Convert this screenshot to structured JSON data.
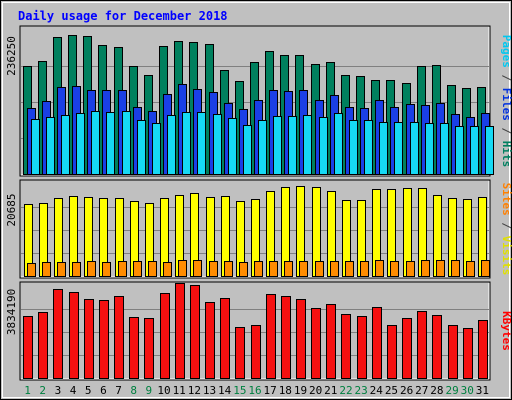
{
  "chart_data": {
    "type": "bar",
    "title": "Daily usage for December 2018",
    "categories": [
      "1",
      "2",
      "3",
      "4",
      "5",
      "6",
      "7",
      "8",
      "9",
      "10",
      "11",
      "12",
      "13",
      "14",
      "15",
      "16",
      "17",
      "18",
      "19",
      "20",
      "21",
      "22",
      "23",
      "24",
      "25",
      "26",
      "27",
      "28",
      "29",
      "30",
      "31"
    ],
    "weekend_days": [
      "1",
      "2",
      "8",
      "9",
      "15",
      "16",
      "22",
      "23",
      "29",
      "30"
    ],
    "panels": [
      {
        "id": "hits",
        "max_label": "236250",
        "ymax": 236250,
        "axis_label_parts": [
          {
            "text": "Pages",
            "color": "#00c8f0"
          },
          {
            "text": " / ",
            "color": "#404040"
          },
          {
            "text": "Files",
            "color": "#0030e0"
          },
          {
            "text": " / ",
            "color": "#404040"
          },
          {
            "text": "Hits",
            "color": "#008060"
          }
        ],
        "series": [
          {
            "name": "Hits",
            "color": "#00805e",
            "values": [
              177000,
              185000,
              225000,
              228000,
              226000,
              212000,
              209000,
              177000,
              163000,
              210000,
              218000,
              217000,
              214000,
              170000,
              152000,
              184000,
              202000,
              196000,
              196000,
              181000,
              183000,
              162000,
              160000,
              154000,
              154000,
              150000,
              177000,
              179000,
              146000,
              141000,
              143000
            ]
          },
          {
            "name": "Files",
            "color": "#1a3fe6",
            "values": [
              108000,
              119000,
              143000,
              144000,
              138000,
              138000,
              138000,
              110000,
              103000,
              131000,
              147000,
              140000,
              135000,
              117000,
              107000,
              121000,
              137000,
              136000,
              138000,
              121000,
              130000,
              110000,
              108000,
              121000,
              110000,
              115000,
              113000,
              116000,
              99000,
              94000,
              100000
            ]
          },
          {
            "name": "Pages",
            "color": "#16d9f4",
            "values": [
              90000,
              93000,
              96000,
              100000,
              104000,
              102000,
              104000,
              89000,
              83000,
              96000,
              102000,
              101000,
              99000,
              92000,
              81000,
              88000,
              95000,
              95000,
              96000,
              94000,
              100000,
              89000,
              88000,
              86000,
              86000,
              86000,
              83000,
              84000,
              79000,
              79000,
              79000
            ]
          }
        ]
      },
      {
        "id": "visits",
        "max_label": "20685",
        "ymax": 20685,
        "axis_label_parts": [
          {
            "text": "Sites",
            "color": "#ff8000"
          },
          {
            "text": " / ",
            "color": "#404040"
          },
          {
            "text": "Visits",
            "color": "#e0e000"
          }
        ],
        "series": [
          {
            "name": "Visits",
            "color": "#ffff00",
            "values": [
              16300,
              16500,
              17600,
              18000,
              17700,
              17500,
              17600,
              16800,
              16400,
              17600,
              18100,
              18600,
              17700,
              17900,
              16900,
              17300,
              19100,
              19900,
              20200,
              19900,
              19000,
              17000,
              17200,
              19500,
              19500,
              19700,
              19700,
              18200,
              17600,
              17300,
              17800
            ]
          },
          {
            "name": "Sites",
            "color": "#ff8c00",
            "values": [
              3000,
              3200,
              3200,
              3200,
              3300,
              3200,
              3300,
              3300,
              3300,
              3200,
              3500,
              3500,
              3400,
              3400,
              3200,
              3300,
              3300,
              3300,
              3400,
              3400,
              3400,
              3300,
              3300,
              3500,
              3400,
              3400,
              3500,
              3600,
              3500,
              3400,
              3600
            ]
          }
        ]
      },
      {
        "id": "kbytes",
        "max_label": "3834190",
        "ymax": 3834190,
        "axis_label_parts": [
          {
            "text": "KBytes",
            "color": "#ff0000"
          }
        ],
        "series": [
          {
            "name": "KBytes",
            "color": "#f51010",
            "values": [
              2580000,
              2770000,
              3720000,
              3590000,
              3300000,
              3230000,
              3400000,
              2560000,
              2520000,
              3540000,
              3950000,
              3880000,
              3170000,
              3350000,
              2110000,
              2200000,
              3510000,
              3430000,
              3310000,
              2920000,
              3100000,
              2670000,
              2580000,
              2970000,
              2210000,
              2480000,
              2790000,
              2640000,
              2220000,
              2080000,
              2400000
            ]
          }
        ]
      }
    ]
  }
}
